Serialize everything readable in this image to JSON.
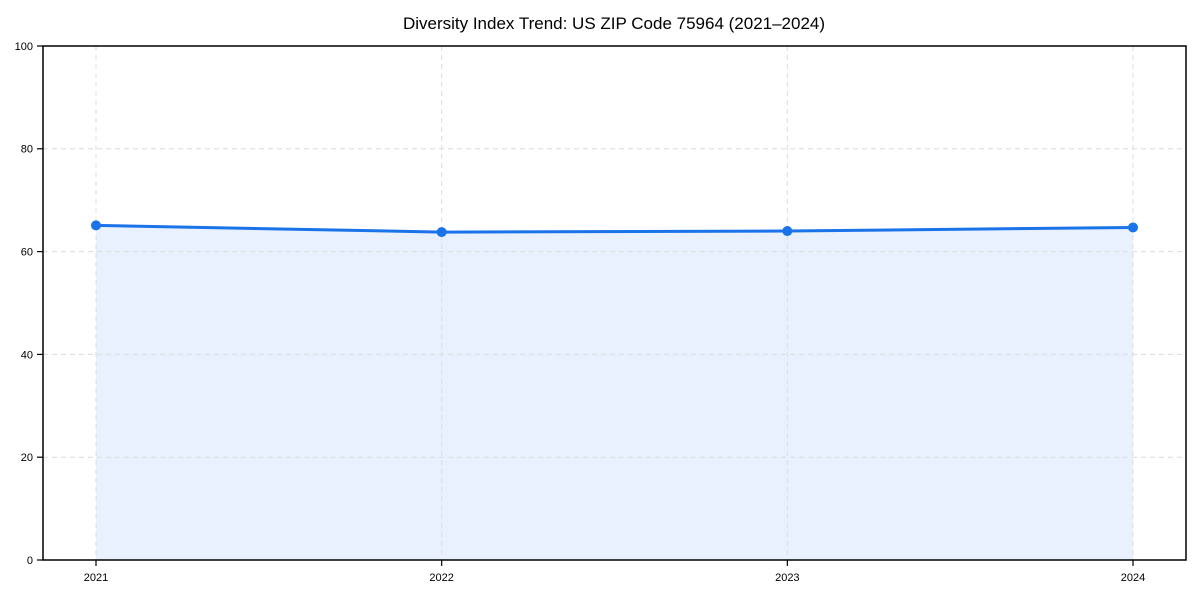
{
  "page": {
    "background": "#ffffff"
  },
  "chart_data": {
    "type": "area",
    "title": "Diversity Index Trend: US ZIP Code 75964 (2021–2024)",
    "categories": [
      "2021",
      "2022",
      "2023",
      "2024"
    ],
    "values": [
      65.1,
      63.8,
      64.0,
      64.7
    ],
    "xlabel": "",
    "ylabel": "",
    "ylim": [
      0,
      100
    ],
    "yticks": [
      0,
      20,
      40,
      60,
      80,
      100
    ],
    "grid": true,
    "grid_style": "dashed",
    "legend": "none",
    "colors": {
      "line": "#1a73e8",
      "marker": "#1a73e8",
      "fill": "#e8f1fd",
      "grid": "#dcdcdc",
      "axis": "#000000",
      "text": "#000000"
    }
  }
}
